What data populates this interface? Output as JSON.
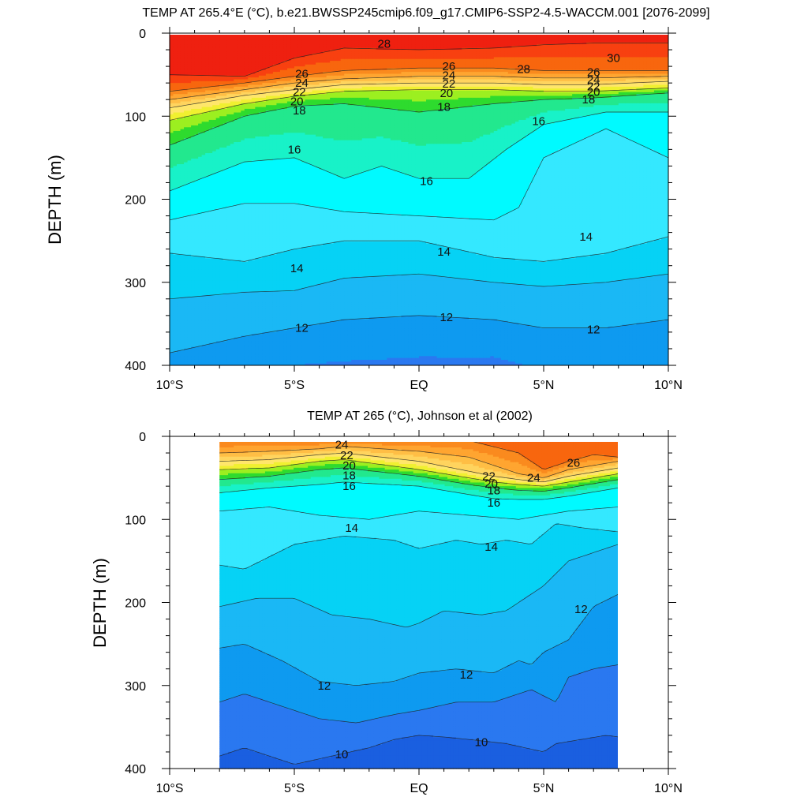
{
  "chart_data": [
    {
      "type": "contour",
      "title": "TEMP AT 265.4°E (°C), b.e21.BWSSP245cmip6.f09_g17.CMIP6-SSP2-4.5-WACCM.001 [2076-2099]",
      "ylabel": "DEPTH (m)",
      "xlabel": "",
      "x_ticks": [
        "10°S",
        "5°S",
        "EQ",
        "5°N",
        "10°N"
      ],
      "y_ticks": [
        "0",
        "100",
        "200",
        "300",
        "400"
      ],
      "xlim": [
        -10,
        10
      ],
      "ylim": [
        0,
        400
      ],
      "data_x_range": [
        -10,
        10
      ],
      "contour_levels": [
        9,
        10,
        11,
        12,
        13,
        14,
        15,
        16,
        17,
        18,
        19,
        20,
        21,
        22,
        23,
        24,
        25,
        26,
        27,
        28,
        29,
        30
      ],
      "isotherms": [
        {
          "level": 28,
          "x": [
            -10,
            -7,
            -5,
            -3,
            0,
            3,
            5,
            7,
            10
          ],
          "depth": [
            50,
            52,
            30,
            18,
            20,
            18,
            14,
            12,
            12
          ]
        },
        {
          "level": 26,
          "x": [
            -10,
            -7,
            -5,
            -3,
            0,
            3,
            5,
            7,
            10
          ],
          "depth": [
            70,
            60,
            52,
            45,
            42,
            42,
            45,
            45,
            45
          ]
        },
        {
          "level": 24,
          "x": [
            -10,
            -7,
            -5,
            -3,
            0,
            3,
            5,
            7,
            10
          ],
          "depth": [
            80,
            68,
            60,
            55,
            52,
            52,
            54,
            54,
            52
          ]
        },
        {
          "level": 22,
          "x": [
            -10,
            -7,
            -5,
            -3,
            0,
            3,
            5,
            7,
            10
          ],
          "depth": [
            90,
            75,
            68,
            62,
            60,
            60,
            62,
            62,
            58
          ]
        },
        {
          "level": 20,
          "x": [
            -10,
            -7,
            -5,
            -3,
            0,
            3,
            5,
            7,
            10
          ],
          "depth": [
            105,
            85,
            76,
            70,
            68,
            68,
            70,
            70,
            66
          ]
        },
        {
          "level": 18,
          "x": [
            -10,
            -7,
            -5,
            -3,
            0,
            3,
            5,
            7,
            10
          ],
          "depth": [
            135,
            100,
            88,
            85,
            95,
            85,
            80,
            78,
            72
          ]
        },
        {
          "level": 16,
          "x": [
            -10,
            -7,
            -5,
            -3,
            -1.5,
            0,
            2,
            3.5,
            5,
            7.5,
            10
          ],
          "depth": [
            190,
            155,
            150,
            175,
            160,
            175,
            175,
            140,
            110,
            95,
            95
          ]
        },
        {
          "level": 15,
          "x": [
            -10,
            -7,
            -5,
            -3,
            0,
            3,
            4,
            5,
            7.5,
            10
          ],
          "depth": [
            225,
            205,
            205,
            215,
            220,
            225,
            210,
            150,
            115,
            150
          ]
        },
        {
          "level": 14,
          "x": [
            -10,
            -7,
            -5,
            -3,
            0,
            3,
            5,
            7.5,
            10
          ],
          "depth": [
            265,
            275,
            260,
            250,
            250,
            270,
            275,
            265,
            245
          ]
        },
        {
          "level": 13,
          "x": [
            -10,
            -7,
            -5,
            -3,
            0,
            3,
            5,
            7.5,
            10
          ],
          "depth": [
            320,
            312,
            310,
            295,
            290,
            300,
            305,
            300,
            290
          ]
        },
        {
          "level": 12,
          "x": [
            -10,
            -7,
            -5,
            -3,
            0,
            3,
            5,
            7.5,
            10
          ],
          "depth": [
            385,
            365,
            355,
            345,
            340,
            345,
            355,
            355,
            345
          ]
        }
      ],
      "contour_labels": [
        {
          "text": "28",
          "x": -1.4,
          "depth": 13
        },
        {
          "text": "30",
          "x": 7.8,
          "depth": 30
        },
        {
          "text": "26",
          "x": -4.7,
          "depth": 49
        },
        {
          "text": "24",
          "x": -4.7,
          "depth": 60
        },
        {
          "text": "22",
          "x": -4.8,
          "depth": 71
        },
        {
          "text": "20",
          "x": -4.9,
          "depth": 82
        },
        {
          "text": "18",
          "x": -4.8,
          "depth": 93
        },
        {
          "text": "26",
          "x": 1.2,
          "depth": 40
        },
        {
          "text": "24",
          "x": 1.2,
          "depth": 51
        },
        {
          "text": "22",
          "x": 1.2,
          "depth": 61
        },
        {
          "text": "20",
          "x": 1.1,
          "depth": 72
        },
        {
          "text": "18",
          "x": 1.0,
          "depth": 89
        },
        {
          "text": "28",
          "x": 4.2,
          "depth": 43
        },
        {
          "text": "26",
          "x": 7.0,
          "depth": 47
        },
        {
          "text": "24",
          "x": 7.0,
          "depth": 56
        },
        {
          "text": "22",
          "x": 7.0,
          "depth": 64
        },
        {
          "text": "20",
          "x": 7.0,
          "depth": 71
        },
        {
          "text": "18",
          "x": 6.8,
          "depth": 80
        },
        {
          "text": "16",
          "x": 4.8,
          "depth": 106
        },
        {
          "text": "16",
          "x": -5.0,
          "depth": 140
        },
        {
          "text": "16",
          "x": 0.3,
          "depth": 178
        },
        {
          "text": "14",
          "x": -4.9,
          "depth": 283
        },
        {
          "text": "14",
          "x": 1.0,
          "depth": 263
        },
        {
          "text": "14",
          "x": 6.7,
          "depth": 245
        },
        {
          "text": "12",
          "x": -4.7,
          "depth": 355
        },
        {
          "text": "12",
          "x": 1.1,
          "depth": 342
        },
        {
          "text": "12",
          "x": 7.0,
          "depth": 357
        }
      ]
    },
    {
      "type": "contour",
      "title": "TEMP AT 265 (°C), Johnson et al (2002)",
      "ylabel": "DEPTH (m)",
      "xlabel": "",
      "x_ticks": [
        "10°S",
        "5°S",
        "EQ",
        "5°N",
        "10°N"
      ],
      "y_ticks": [
        "0",
        "100",
        "200",
        "300",
        "400"
      ],
      "xlim": [
        -10,
        10
      ],
      "ylim": [
        0,
        400
      ],
      "data_x_range": [
        -8,
        8
      ],
      "contour_levels": [
        9,
        10,
        11,
        12,
        13,
        14,
        15,
        16,
        17,
        18,
        19,
        20,
        21,
        22,
        23,
        24,
        25,
        26,
        27
      ],
      "isotherms": [
        {
          "level": 26,
          "x": [
            -8,
            -5,
            -3,
            0,
            2,
            4,
            5,
            6,
            7,
            8
          ],
          "depth": [
            5,
            5,
            5,
            5,
            5,
            20,
            40,
            30,
            22,
            25
          ]
        },
        {
          "level": 24,
          "x": [
            -8,
            -6,
            -4,
            -3,
            0,
            2,
            3,
            4,
            5,
            6,
            8
          ],
          "depth": [
            20,
            18,
            15,
            12,
            18,
            25,
            35,
            45,
            50,
            40,
            30
          ]
        },
        {
          "level": 22,
          "x": [
            -8,
            -6,
            -4,
            -3,
            0,
            2,
            3,
            4,
            5,
            6,
            8
          ],
          "depth": [
            30,
            28,
            22,
            20,
            30,
            42,
            48,
            52,
            55,
            48,
            38
          ]
        },
        {
          "level": 20,
          "x": [
            -8,
            -6,
            -4,
            -3,
            0,
            2,
            3,
            4,
            5,
            6,
            8
          ],
          "depth": [
            40,
            38,
            30,
            28,
            40,
            50,
            55,
            58,
            60,
            55,
            45
          ]
        },
        {
          "level": 18,
          "x": [
            -8,
            -6,
            -4,
            -3,
            0,
            2,
            3,
            4,
            5,
            6,
            8
          ],
          "depth": [
            52,
            48,
            40,
            38,
            48,
            58,
            62,
            65,
            66,
            62,
            52
          ]
        },
        {
          "level": 16,
          "x": [
            -8,
            -6,
            -4,
            -3,
            0,
            2,
            3,
            4,
            5,
            6,
            8
          ],
          "depth": [
            68,
            62,
            58,
            55,
            60,
            70,
            75,
            76,
            76,
            72,
            62
          ]
        },
        {
          "level": 15,
          "x": [
            -8,
            -6,
            -4,
            -2,
            0,
            2,
            4,
            5,
            6,
            8
          ],
          "depth": [
            90,
            85,
            95,
            100,
            90,
            95,
            100,
            95,
            90,
            85
          ]
        },
        {
          "level": 14,
          "x": [
            -8,
            -7,
            -5,
            -3,
            -1,
            0,
            1.5,
            2.5,
            3.5,
            4.5,
            5.5,
            6.5,
            8
          ],
          "depth": [
            155,
            160,
            130,
            120,
            125,
            135,
            125,
            130,
            125,
            130,
            105,
            110,
            115
          ]
        },
        {
          "level": 13,
          "x": [
            -8,
            -6.5,
            -5,
            -3.5,
            -2,
            -0.5,
            0,
            1,
            2.5,
            3.5,
            4.5,
            5,
            6,
            7,
            8
          ],
          "depth": [
            205,
            195,
            195,
            215,
            220,
            230,
            225,
            210,
            215,
            210,
            190,
            180,
            150,
            140,
            130
          ]
        },
        {
          "level": 12,
          "x": [
            -8,
            -7,
            -5.5,
            -4,
            -2.5,
            -1,
            0,
            1.5,
            3,
            4,
            4.5,
            5,
            6,
            7,
            8
          ],
          "depth": [
            255,
            250,
            270,
            295,
            300,
            295,
            285,
            280,
            285,
            270,
            275,
            260,
            245,
            205,
            190
          ]
        },
        {
          "level": 11,
          "x": [
            -8,
            -7,
            -5.5,
            -4,
            -2.5,
            -1,
            0,
            1.5,
            3,
            4.5,
            5.5,
            6,
            7,
            8
          ],
          "depth": [
            320,
            310,
            325,
            340,
            345,
            335,
            330,
            320,
            320,
            305,
            320,
            290,
            280,
            275
          ]
        },
        {
          "level": 10,
          "x": [
            -8,
            -7,
            -6,
            -5,
            -3.5,
            -2,
            -1,
            0,
            1,
            2,
            3.5,
            5,
            5.5,
            6.5,
            7.5,
            8
          ],
          "depth": [
            385,
            375,
            385,
            395,
            385,
            375,
            365,
            360,
            362,
            365,
            370,
            380,
            370,
            365,
            360,
            362
          ]
        }
      ],
      "contour_labels": [
        {
          "text": "24",
          "x": -3.1,
          "depth": 10
        },
        {
          "text": "22",
          "x": -2.9,
          "depth": 23
        },
        {
          "text": "20",
          "x": -2.8,
          "depth": 35
        },
        {
          "text": "18",
          "x": -2.8,
          "depth": 47
        },
        {
          "text": "16",
          "x": -2.8,
          "depth": 60
        },
        {
          "text": "14",
          "x": -2.7,
          "depth": 110
        },
        {
          "text": "22",
          "x": 2.8,
          "depth": 48
        },
        {
          "text": "20",
          "x": 2.9,
          "depth": 57
        },
        {
          "text": "18",
          "x": 3.0,
          "depth": 65
        },
        {
          "text": "16",
          "x": 3.0,
          "depth": 80
        },
        {
          "text": "24",
          "x": 4.6,
          "depth": 50
        },
        {
          "text": "26",
          "x": 6.2,
          "depth": 32
        },
        {
          "text": "14",
          "x": 2.9,
          "depth": 133
        },
        {
          "text": "12",
          "x": 6.5,
          "depth": 208
        },
        {
          "text": "12",
          "x": 1.9,
          "depth": 287
        },
        {
          "text": "12",
          "x": -3.8,
          "depth": 300
        },
        {
          "text": "10",
          "x": 2.5,
          "depth": 368
        },
        {
          "text": "10",
          "x": -3.1,
          "depth": 383
        }
      ]
    }
  ]
}
